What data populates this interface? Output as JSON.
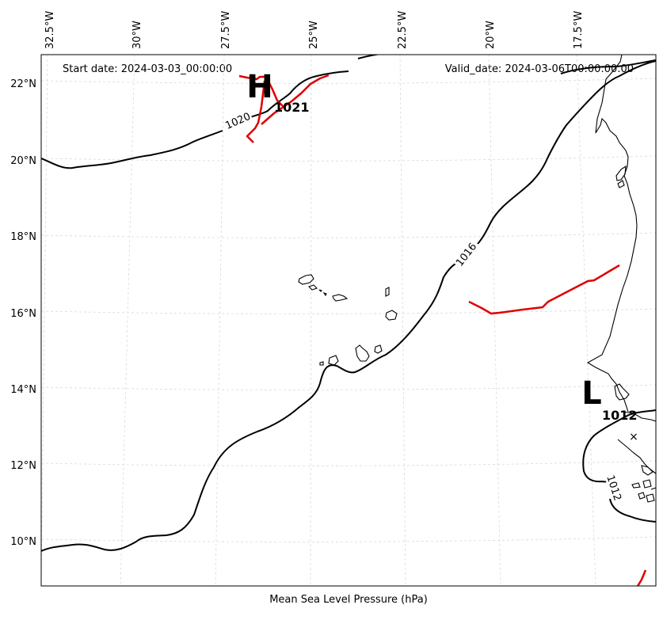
{
  "header": {
    "start_date": "Start date: 2024-03-03_00:00:00",
    "valid_date": "Valid_date: 2024-03-06T00:00:00.00"
  },
  "caption": "Mean Sea Level Pressure (hPa)",
  "lon_ticks": [
    "32.5°W",
    "30°W",
    "27.5°W",
    "25°W",
    "22.5°W",
    "20°W",
    "17.5°W"
  ],
  "lat_ticks": [
    "22°N",
    "20°N",
    "18°N",
    "16°N",
    "14°N",
    "12°N",
    "10°N"
  ],
  "isobar_labels": [
    "1020",
    "1016",
    "1012"
  ],
  "centers": [
    {
      "letter": "H",
      "value": "1021"
    },
    {
      "letter": "L",
      "value": "1012"
    }
  ],
  "colors": {
    "isobar": "#000000",
    "track": "#e00000",
    "grid": "#d9d9d9",
    "coastline": "#000000"
  }
}
